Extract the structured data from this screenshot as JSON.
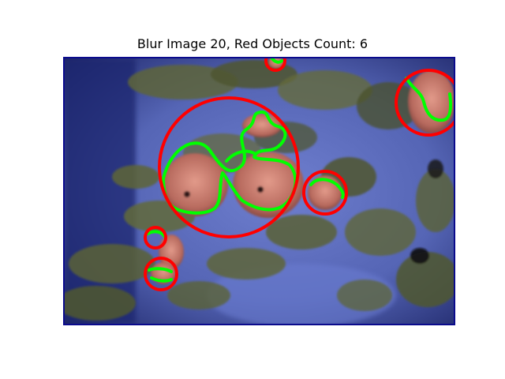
{
  "figure": {
    "title": "Blur Image 20, Red Objects Count: 6"
  },
  "image": {
    "scene": "blurred photo of red fruit among dark green leaves against a blue background",
    "red_objects_count": 6
  },
  "colors": {
    "detection_circle": "#ff0000",
    "contour": "#00ff00",
    "frame_border": "#0a0a8c",
    "background_blue": "#5f6fbf",
    "background_dark_blue": "#1c2466",
    "foliage": "#5b6236",
    "fruit": "#c97a6c"
  }
}
